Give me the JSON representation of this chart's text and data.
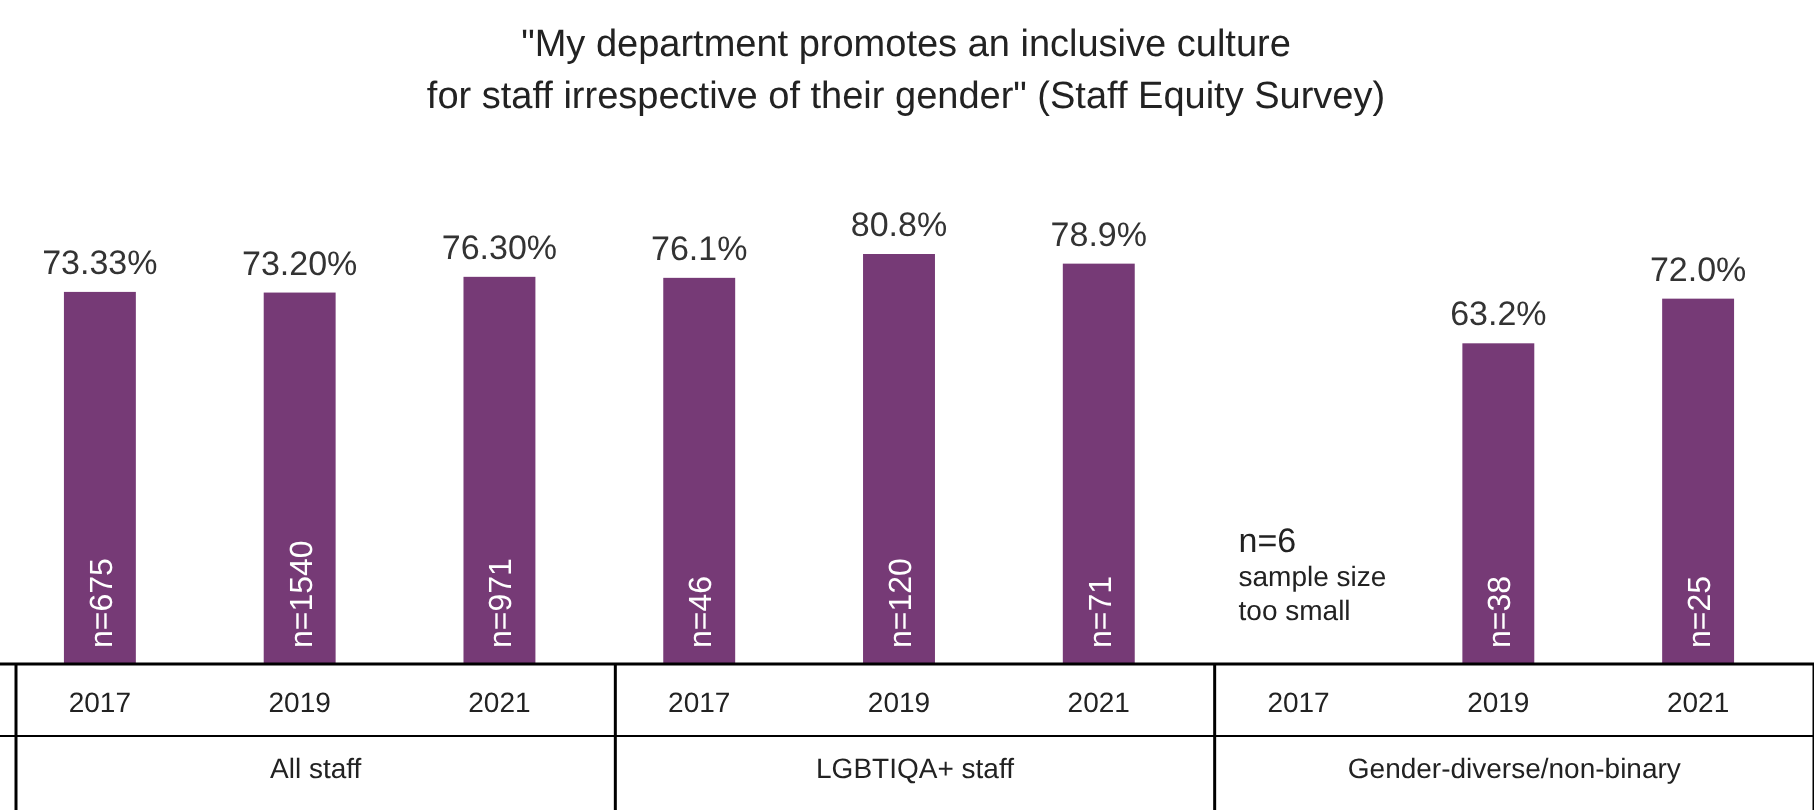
{
  "chart_data": {
    "type": "bar",
    "title": "\"My department promotes an inclusive culture\nfor staff irrespective of their gender\" (Staff Equity Survey)",
    "categories": [
      "2017",
      "2019",
      "2021",
      "2017",
      "2019",
      "2021",
      "2017",
      "2019",
      "2021"
    ],
    "values": [
      73.33,
      73.2,
      76.3,
      76.1,
      80.8,
      78.9,
      null,
      63.2,
      72.0
    ],
    "value_labels": [
      "73.33%",
      "73.20%",
      "76.30%",
      "76.1%",
      "80.8%",
      "78.9%",
      null,
      "63.2%",
      "72.0%"
    ],
    "color": "#763a76",
    "annotations": [
      "n=675",
      "n=1540",
      "n=971",
      "n=46",
      "n=120",
      "n=71",
      "n=6\nsample size\ntoo small",
      "n=38",
      "n=25",
      "All staff",
      "LGBTIQA+ staff",
      "Gender-diverse/non-binary"
    ]
  }
}
